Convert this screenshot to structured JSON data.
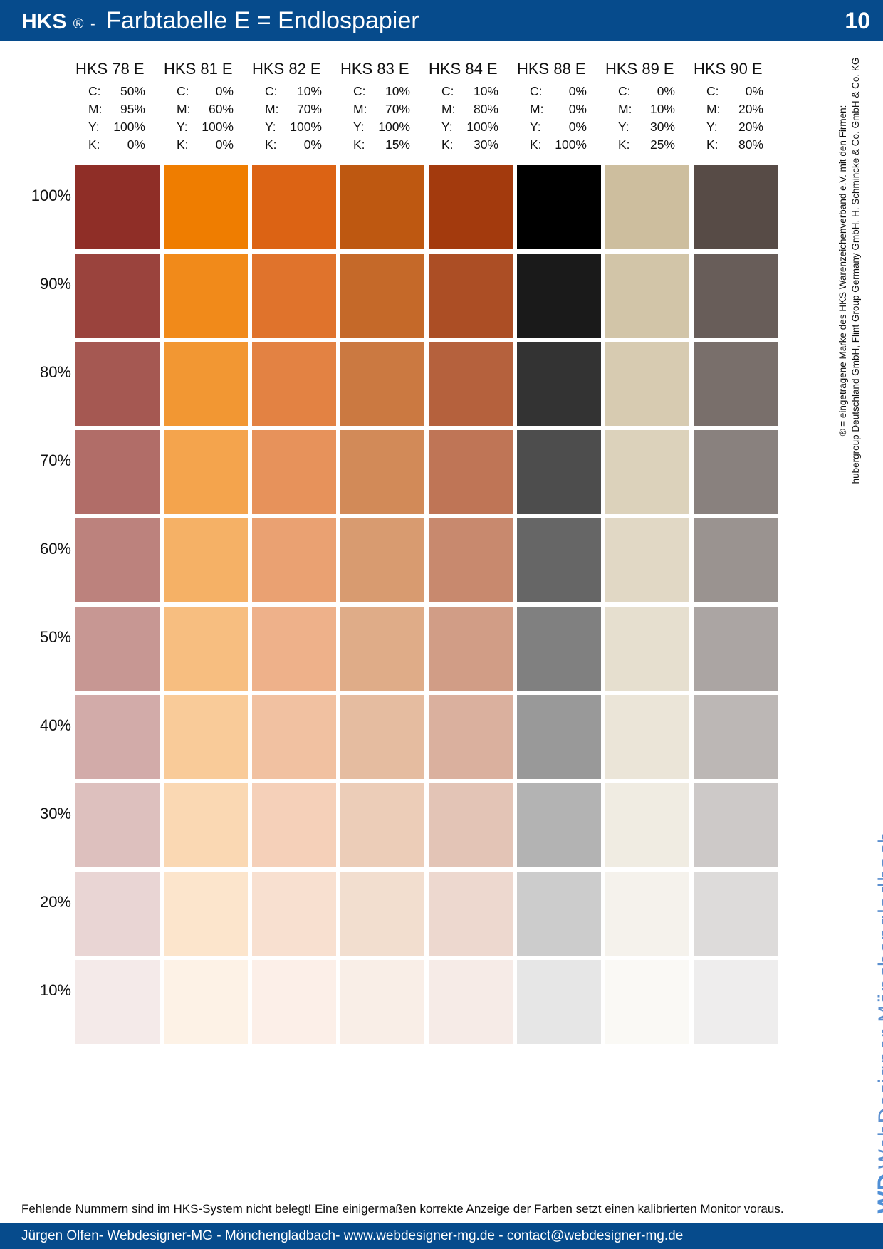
{
  "header": {
    "brand": "HKS",
    "reg": "®",
    "sep": "-",
    "title": "Farbtabelle E = Endlospapier",
    "page_number": "10"
  },
  "cmyk_keys": [
    "C:",
    "M:",
    "Y:",
    "K:"
  ],
  "columns": [
    {
      "name": "HKS 78 E",
      "cmyk": [
        "50%",
        "95%",
        "100%",
        "0%"
      ],
      "rgb": [
        143,
        46,
        39
      ]
    },
    {
      "name": "HKS 81 E",
      "cmyk": [
        "0%",
        "60%",
        "100%",
        "0%"
      ],
      "rgb": [
        239,
        125,
        0
      ]
    },
    {
      "name": "HKS 82 E",
      "cmyk": [
        "10%",
        "70%",
        "100%",
        "0%"
      ],
      "rgb": [
        220,
        99,
        20
      ]
    },
    {
      "name": "HKS 83 E",
      "cmyk": [
        "10%",
        "70%",
        "100%",
        "15%"
      ],
      "rgb": [
        190,
        88,
        17
      ]
    },
    {
      "name": "HKS 84 E",
      "cmyk": [
        "10%",
        "80%",
        "100%",
        "30%"
      ],
      "rgb": [
        163,
        58,
        13
      ]
    },
    {
      "name": "HKS 88 E",
      "cmyk": [
        "0%",
        "0%",
        "0%",
        "100%"
      ],
      "rgb": [
        0,
        0,
        0
      ]
    },
    {
      "name": "HKS 89 E",
      "cmyk": [
        "0%",
        "10%",
        "30%",
        "25%"
      ],
      "rgb": [
        205,
        190,
        158
      ]
    },
    {
      "name": "HKS 90 E",
      "cmyk": [
        "0%",
        "20%",
        "20%",
        "80%"
      ],
      "rgb": [
        87,
        75,
        70
      ]
    }
  ],
  "tint_levels": [
    "100%",
    "90%",
    "80%",
    "70%",
    "60%",
    "50%",
    "40%",
    "30%",
    "20%",
    "10%"
  ],
  "tint_values": [
    1.0,
    0.9,
    0.8,
    0.7,
    0.6,
    0.5,
    0.4,
    0.3,
    0.2,
    0.1
  ],
  "side_note": {
    "line1": "® = eingetragene Marke des HKS Warenzeichenverband e.V. mit den Firmen:",
    "line2": "hubergroup Deutschland GmbH, Flint Group Germany GmbH, H. Schmincke & Co. GmbH & Co. KG"
  },
  "logo": {
    "mark": "WD",
    "text": "WebDesigner Mönchengladbach"
  },
  "bottom_note": "Fehlende Nummern sind im HKS-System nicht belegt! Eine einigermaßen korrekte Anzeige der Farben setzt einen kalibrierten Monitor voraus.",
  "footer": "Jürgen Olfen- Webdesigner-MG - Mönchengladbach- www.webdesigner-mg.de - contact@webdesigner-mg.de"
}
